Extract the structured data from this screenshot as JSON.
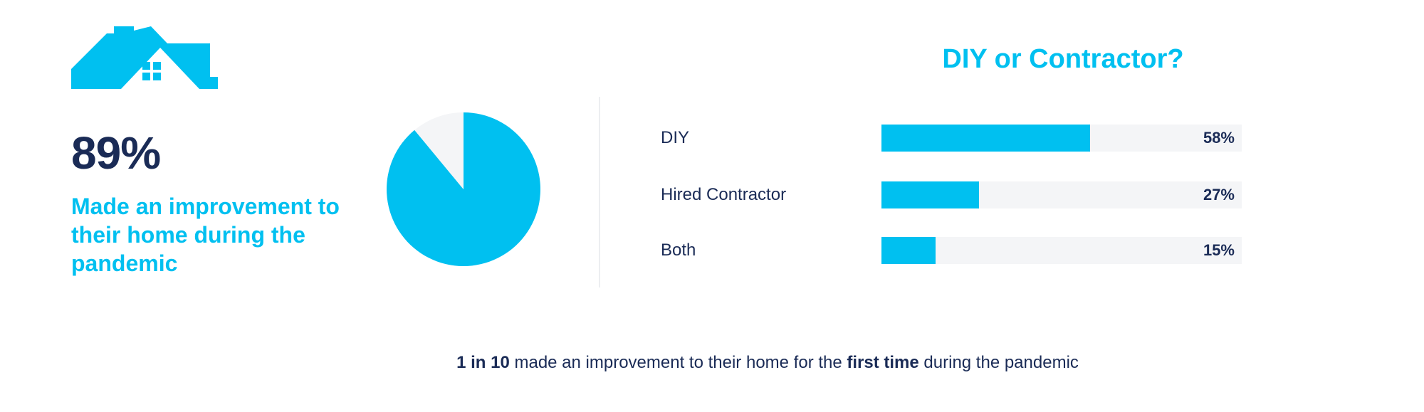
{
  "colors": {
    "accent": "#00c0f0",
    "navy": "#1a2b56",
    "track": "#f4f5f7"
  },
  "icon": "house-icon",
  "stat": {
    "value": "89%",
    "text": "Made an improvement to their home during the pandemic"
  },
  "chart_data": [
    {
      "type": "pie",
      "slices": [
        {
          "label": "Made an improvement",
          "value": 89,
          "color": "#00c0f0"
        },
        {
          "label": "Other",
          "value": 11,
          "color": "#f4f5f7"
        }
      ]
    },
    {
      "type": "bar",
      "orientation": "horizontal",
      "title": "DIY or Contractor?",
      "categories": [
        "DIY",
        "Hired Contractor",
        "Both"
      ],
      "values": [
        58,
        27,
        15
      ],
      "value_labels": [
        "58%",
        "27%",
        "15%"
      ],
      "xlim": [
        0,
        100
      ]
    }
  ],
  "footer": {
    "bold1": "1 in 10",
    "text1": " made an improvement to their home for the ",
    "bold2": "first time",
    "text2": " during the pandemic"
  }
}
